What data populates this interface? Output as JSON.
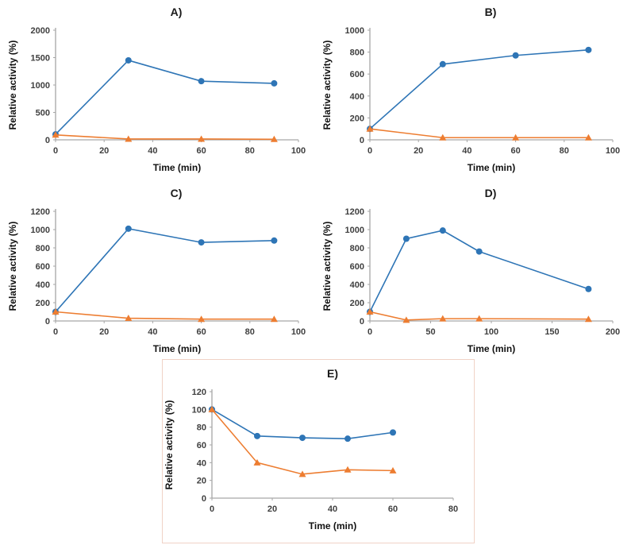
{
  "figure": {
    "ylabel": "Relative activity (%)",
    "xlabel": "Time (min)"
  },
  "colors": {
    "series_blue": "#2E75B6",
    "series_orange": "#ED7D31",
    "axis": "#A6A6A6",
    "tick_text": "#3F3F3F",
    "panel_e_border": "#F0D2C6"
  },
  "chart_data": [
    {
      "type": "line",
      "title": "A)",
      "xlabel": "Time (min)",
      "ylabel": "Relative activity (%)",
      "xlim": [
        0,
        100
      ],
      "xticks": [
        0,
        20,
        40,
        60,
        80,
        100
      ],
      "ylim": [
        0,
        2000
      ],
      "yticks": [
        0,
        500,
        1000,
        1500,
        2000
      ],
      "grid": false,
      "legend": "none",
      "series": [
        {
          "name": "blue-circles",
          "marker": "circle",
          "color": "#2E75B6",
          "x": [
            0,
            30,
            60,
            90
          ],
          "y": [
            100,
            1450,
            1070,
            1030
          ]
        },
        {
          "name": "orange-triangles",
          "marker": "triangle",
          "color": "#ED7D31",
          "x": [
            0,
            30,
            60,
            90
          ],
          "y": [
            90,
            15,
            15,
            10
          ]
        }
      ]
    },
    {
      "type": "line",
      "title": "B)",
      "xlabel": "Time (min)",
      "ylabel": "Relative activity (%)",
      "xlim": [
        0,
        100
      ],
      "xticks": [
        0,
        20,
        40,
        60,
        80,
        100
      ],
      "ylim": [
        0,
        1000
      ],
      "yticks": [
        0,
        200,
        400,
        600,
        800,
        1000
      ],
      "grid": false,
      "legend": "none",
      "series": [
        {
          "name": "blue-circles",
          "marker": "circle",
          "color": "#2E75B6",
          "x": [
            0,
            30,
            60,
            90
          ],
          "y": [
            100,
            690,
            770,
            820
          ]
        },
        {
          "name": "orange-triangles",
          "marker": "triangle",
          "color": "#ED7D31",
          "x": [
            0,
            30,
            60,
            90
          ],
          "y": [
            100,
            20,
            20,
            20
          ]
        }
      ]
    },
    {
      "type": "line",
      "title": "C)",
      "xlabel": "Time (min)",
      "ylabel": "Relative activity (%)",
      "xlim": [
        0,
        100
      ],
      "xticks": [
        0,
        20,
        40,
        60,
        80,
        100
      ],
      "ylim": [
        0,
        1200
      ],
      "yticks": [
        0,
        200,
        400,
        600,
        800,
        1000,
        1200
      ],
      "grid": false,
      "legend": "none",
      "series": [
        {
          "name": "blue-circles",
          "marker": "circle",
          "color": "#2E75B6",
          "x": [
            0,
            30,
            60,
            90
          ],
          "y": [
            100,
            1010,
            860,
            880
          ]
        },
        {
          "name": "orange-triangles",
          "marker": "triangle",
          "color": "#ED7D31",
          "x": [
            0,
            30,
            60,
            90
          ],
          "y": [
            100,
            30,
            20,
            20
          ]
        }
      ]
    },
    {
      "type": "line",
      "title": "D)",
      "xlabel": "Time (min)",
      "ylabel": "Relative activity (%)",
      "xlim": [
        0,
        200
      ],
      "xticks": [
        0,
        50,
        100,
        150,
        200
      ],
      "ylim": [
        0,
        1200
      ],
      "yticks": [
        0,
        200,
        400,
        600,
        800,
        1000,
        1200
      ],
      "grid": false,
      "legend": "none",
      "series": [
        {
          "name": "blue-circles",
          "marker": "circle",
          "color": "#2E75B6",
          "x": [
            0,
            30,
            60,
            90,
            180
          ],
          "y": [
            100,
            900,
            990,
            760,
            350
          ]
        },
        {
          "name": "orange-triangles",
          "marker": "triangle",
          "color": "#ED7D31",
          "x": [
            0,
            30,
            60,
            90,
            180
          ],
          "y": [
            100,
            10,
            25,
            25,
            20
          ]
        }
      ]
    },
    {
      "type": "line",
      "title": "E)",
      "xlabel": "Time (min)",
      "ylabel": "Relative activity (%)",
      "xlim": [
        0,
        80
      ],
      "xticks": [
        0,
        20,
        40,
        60,
        80
      ],
      "ylim": [
        0,
        120
      ],
      "yticks": [
        0,
        20,
        40,
        60,
        80,
        100,
        120
      ],
      "grid": false,
      "legend": "none",
      "series": [
        {
          "name": "blue-circles",
          "marker": "circle",
          "color": "#2E75B6",
          "x": [
            0,
            15,
            30,
            45,
            60
          ],
          "y": [
            100,
            70,
            68,
            67,
            74
          ]
        },
        {
          "name": "orange-triangles",
          "marker": "triangle",
          "color": "#ED7D31",
          "x": [
            0,
            15,
            30,
            45,
            60
          ],
          "y": [
            100,
            40,
            27,
            32,
            31
          ]
        }
      ]
    }
  ]
}
